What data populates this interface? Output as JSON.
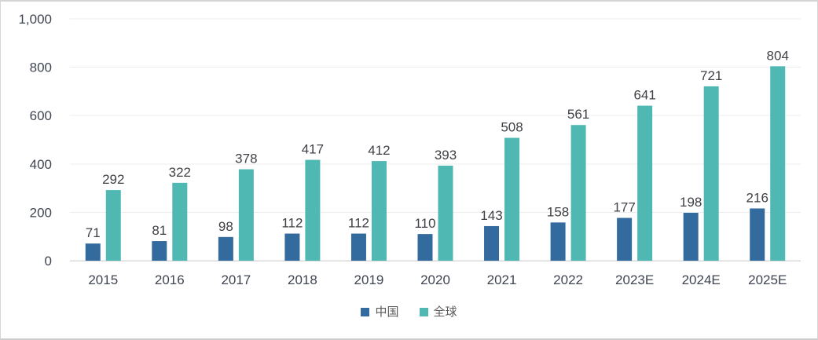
{
  "chart_data": {
    "type": "bar",
    "categories": [
      "2015",
      "2016",
      "2017",
      "2018",
      "2019",
      "2020",
      "2021",
      "2022",
      "2023E",
      "2024E",
      "2025E"
    ],
    "series": [
      {
        "key": "china",
        "name": "中国",
        "color": "#336B9E",
        "values": [
          71,
          81,
          98,
          112,
          112,
          110,
          143,
          158,
          177,
          198,
          216
        ]
      },
      {
        "key": "global",
        "name": "全球",
        "color": "#4FB8B3",
        "values": [
          292,
          322,
          378,
          417,
          412,
          393,
          508,
          561,
          641,
          721,
          804
        ]
      }
    ],
    "title": "",
    "xlabel": "",
    "ylabel": "",
    "ylim": [
      0,
      1000
    ],
    "ytick_step": 200,
    "ytick_labels": [
      "0",
      "200",
      "400",
      "600",
      "800",
      "1,000"
    ],
    "grid": true,
    "value_labels": "outside-end",
    "legend_position": "bottom-center"
  },
  "style": {
    "background": "#ffffff",
    "frame_border": "#d6d6d6",
    "grid_color": "#ececec",
    "baseline_color": "#d9d9d9",
    "axis_text_color": "#3e4450",
    "value_label_color": "#3f4146",
    "legend_text_color": "#595959"
  }
}
